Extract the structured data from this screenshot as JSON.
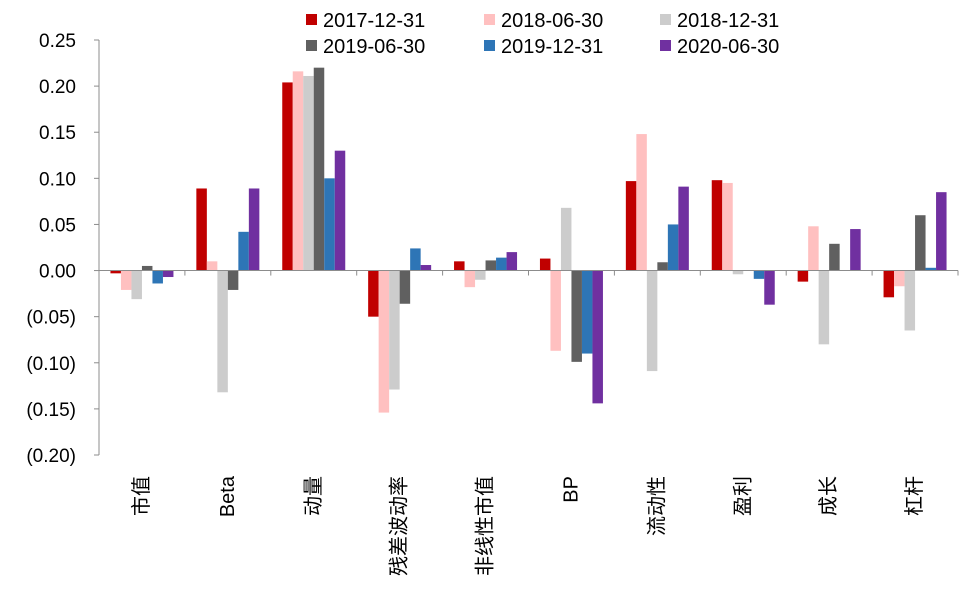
{
  "chart_data": {
    "type": "bar",
    "title": "",
    "xlabel": "",
    "ylabel": "",
    "ylim": [
      -0.2,
      0.25
    ],
    "yticks": [
      0.25,
      0.2,
      0.15,
      0.1,
      0.05,
      0.0,
      -0.05,
      -0.1,
      -0.15,
      -0.2
    ],
    "ytick_labels": [
      "0.25",
      "0.20",
      "0.15",
      "0.10",
      "0.05",
      "0.00",
      "(0.05)",
      "(0.10)",
      "(0.15)",
      "(0.20)"
    ],
    "grid": false,
    "legend_position": "top",
    "categories": [
      "市值",
      "Beta",
      "动量",
      "残差波动率",
      "非线性市值",
      "BP",
      "流动性",
      "盈利",
      "成长",
      "杠杆"
    ],
    "series": [
      {
        "name": "2017-12-31",
        "color": "#C00000",
        "values": [
          -0.003,
          0.089,
          0.204,
          -0.05,
          0.01,
          0.013,
          0.097,
          0.098,
          -0.012,
          -0.029
        ]
      },
      {
        "name": "2018-06-30",
        "color": "#FFC0C0",
        "values": [
          -0.021,
          0.01,
          0.216,
          -0.154,
          -0.018,
          -0.087,
          0.148,
          0.095,
          0.048,
          -0.017
        ]
      },
      {
        "name": "2018-12-31",
        "color": "#CCCCCC",
        "values": [
          -0.031,
          -0.132,
          0.211,
          -0.129,
          -0.01,
          0.068,
          -0.109,
          -0.004,
          -0.08,
          -0.065
        ]
      },
      {
        "name": "2019-06-30",
        "color": "#606060",
        "values": [
          0.005,
          -0.021,
          0.22,
          -0.036,
          0.011,
          -0.099,
          0.009,
          0.0,
          0.029,
          0.06
        ]
      },
      {
        "name": "2019-12-31",
        "color": "#2E75B6",
        "values": [
          -0.014,
          0.042,
          0.1,
          0.024,
          0.014,
          -0.09,
          0.05,
          -0.009,
          0.0,
          0.003
        ]
      },
      {
        "name": "2020-06-30",
        "color": "#7030A0",
        "values": [
          -0.007,
          0.089,
          0.13,
          0.006,
          0.02,
          -0.144,
          0.091,
          -0.037,
          0.045,
          0.085
        ]
      }
    ]
  }
}
